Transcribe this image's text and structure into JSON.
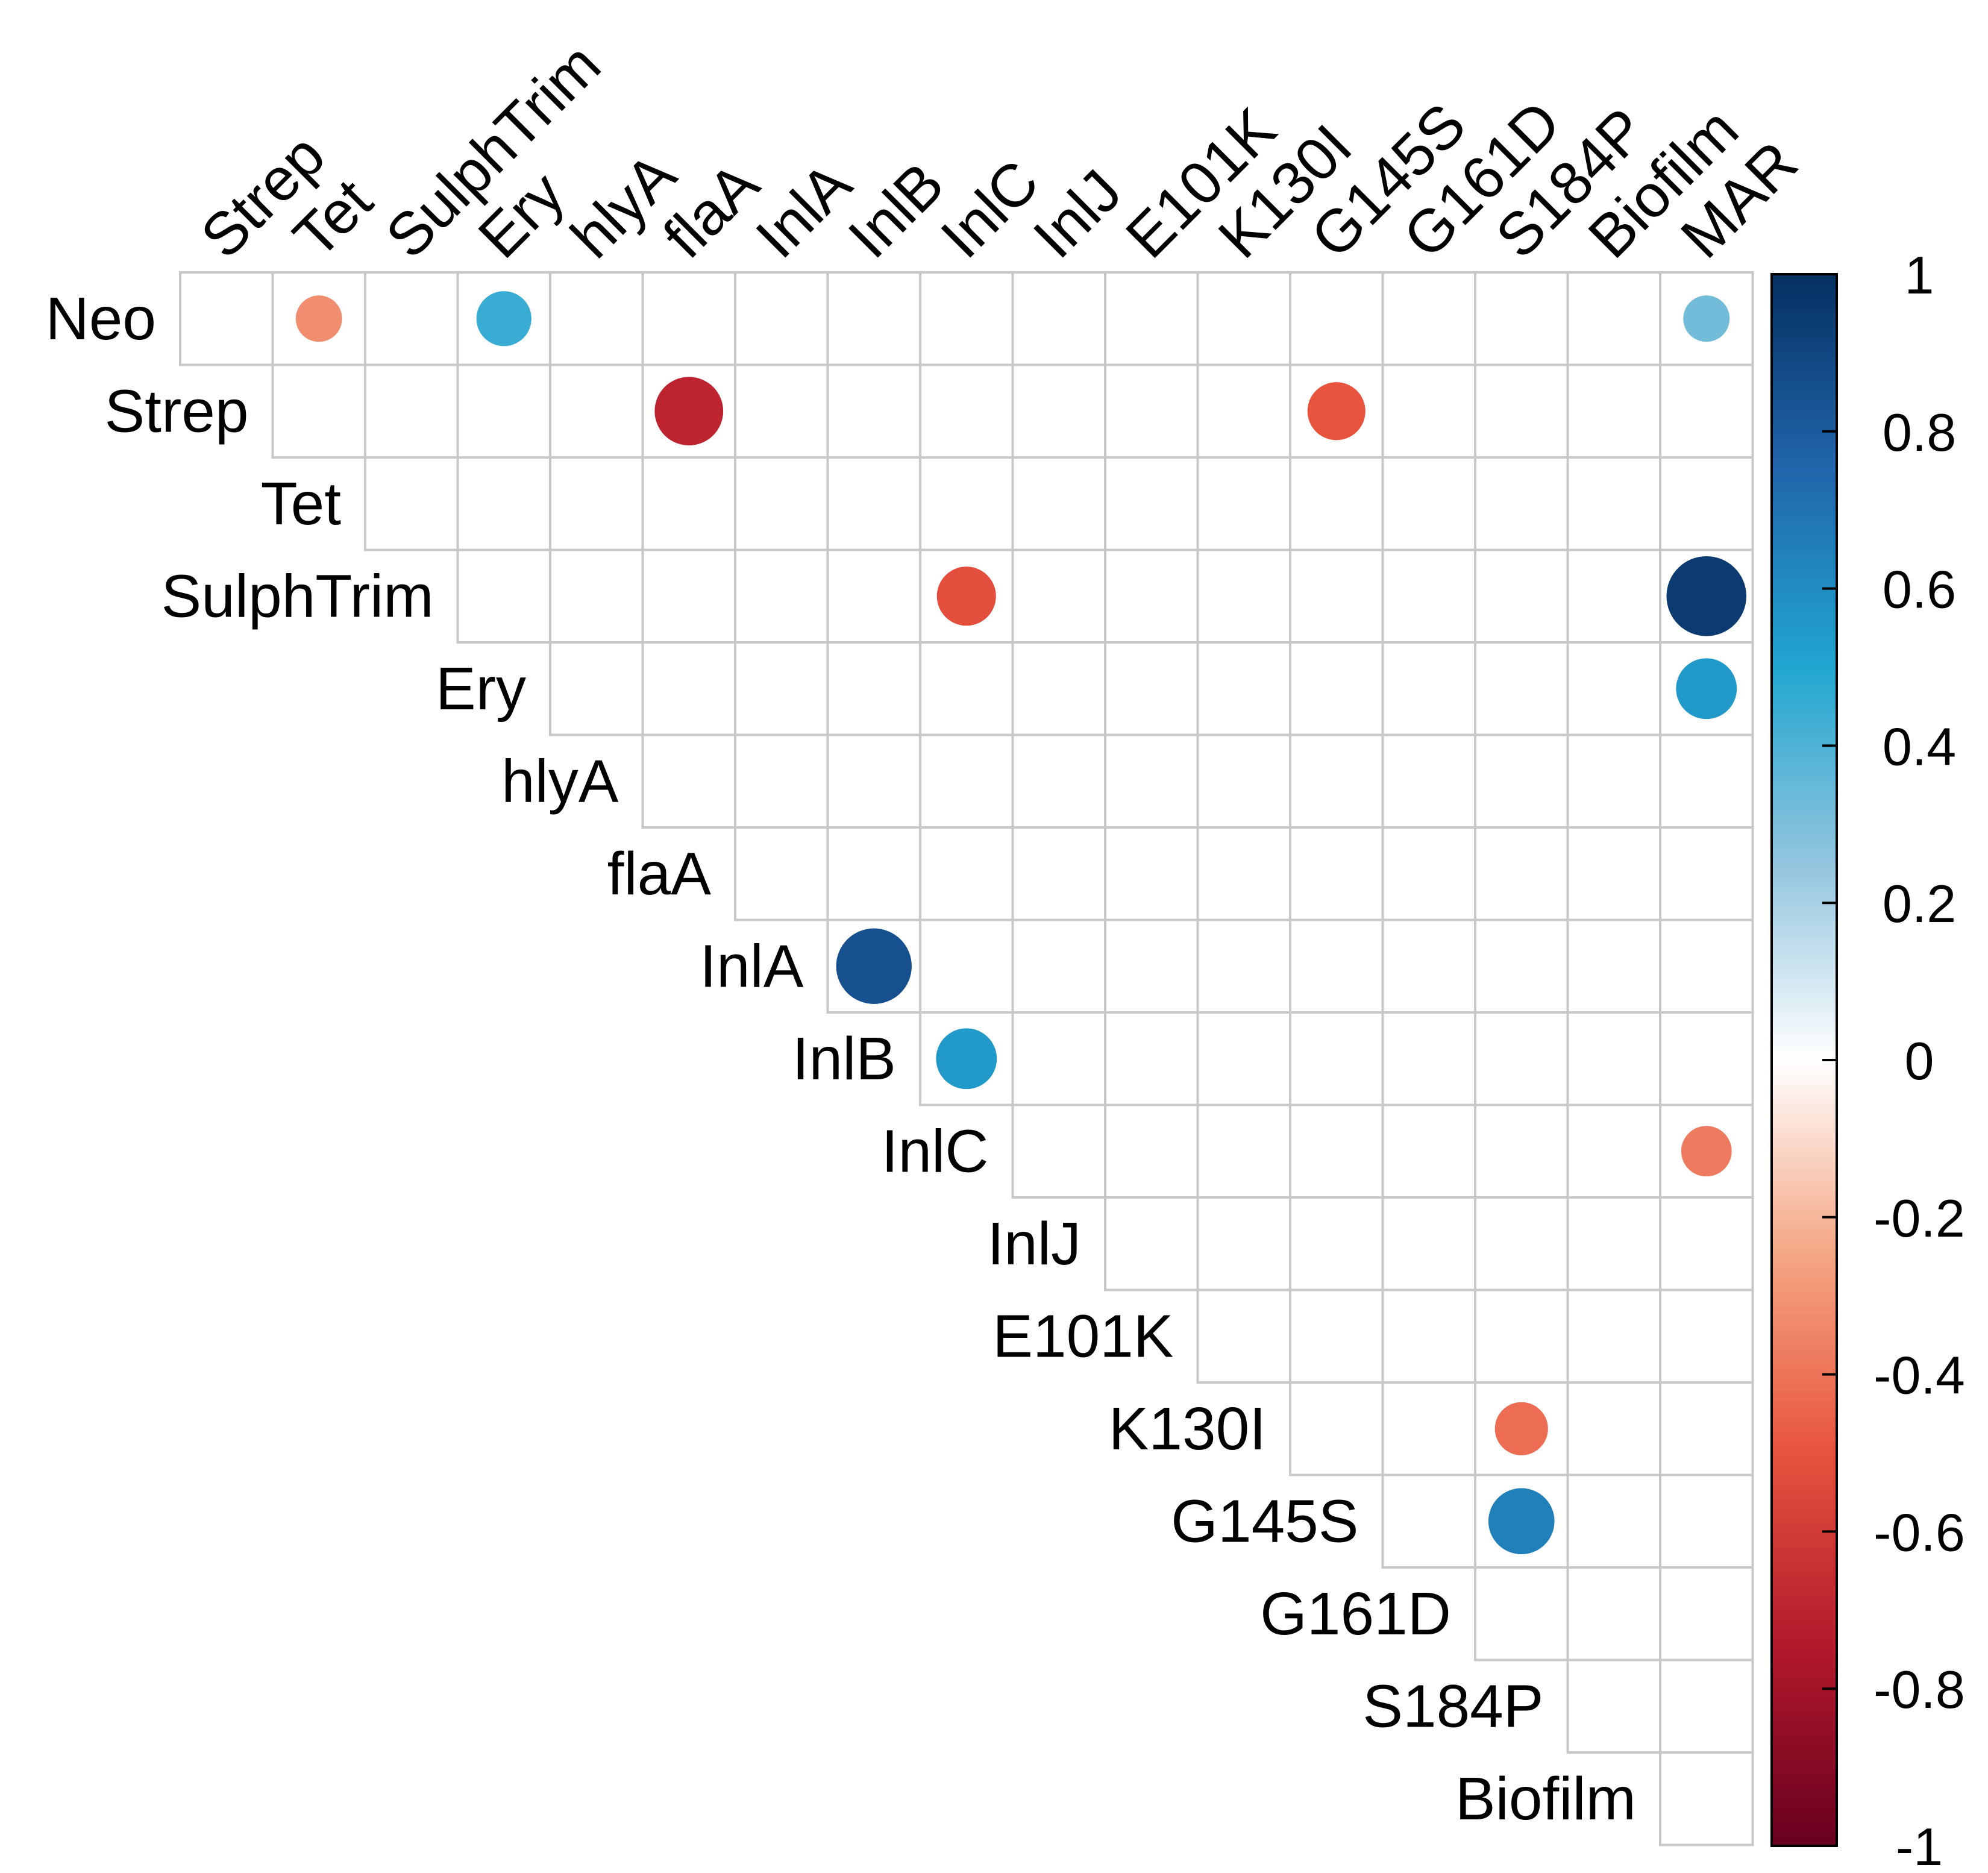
{
  "chart_data": {
    "type": "heatmap",
    "subtype": "correlation-upper-triangle-circles",
    "title": "",
    "row_labels": [
      "Neo",
      "Strep",
      "Tet",
      "SulphTrim",
      "Ery",
      "hlyA",
      "flaA",
      "InlA",
      "InlB",
      "InlC",
      "InlJ",
      "E101K",
      "K130I",
      "G145S",
      "G161D",
      "S184P",
      "Biofilm"
    ],
    "col_labels": [
      "Strep",
      "Tet",
      "SulphTrim",
      "Ery",
      "hlyA",
      "flaA",
      "InlA",
      "InlB",
      "InlC",
      "InlJ",
      "E101K",
      "K130I",
      "G145S",
      "G161D",
      "S184P",
      "Biofilm",
      "MAR"
    ],
    "cells": [
      {
        "row": "Neo",
        "col": "Tet",
        "value": -0.32
      },
      {
        "row": "Neo",
        "col": "Ery",
        "value": 0.45
      },
      {
        "row": "Neo",
        "col": "MAR",
        "value": 0.32
      },
      {
        "row": "Strep",
        "col": "flaA",
        "value": -0.7
      },
      {
        "row": "Strep",
        "col": "G145S",
        "value": -0.5
      },
      {
        "row": "SulphTrim",
        "col": "InlC",
        "value": -0.52
      },
      {
        "row": "SulphTrim",
        "col": "MAR",
        "value": 0.95
      },
      {
        "row": "Ery",
        "col": "MAR",
        "value": 0.55
      },
      {
        "row": "InlA",
        "col": "InlB",
        "value": 0.85
      },
      {
        "row": "InlB",
        "col": "InlC",
        "value": 0.55
      },
      {
        "row": "InlC",
        "col": "MAR",
        "value": -0.38
      },
      {
        "row": "K130I",
        "col": "S184P",
        "value": -0.42
      },
      {
        "row": "G145S",
        "col": "S184P",
        "value": 0.65
      }
    ],
    "color_scale": {
      "range": [
        -1,
        1
      ],
      "ticks": [
        1,
        0.8,
        0.6,
        0.4,
        0.2,
        0,
        -0.2,
        -0.4,
        -0.6,
        -0.8,
        -1
      ],
      "stops": [
        {
          "value": -1,
          "color": "#67001f"
        },
        {
          "value": -0.75,
          "color": "#b2182b"
        },
        {
          "value": -0.5,
          "color": "#e8533e"
        },
        {
          "value": -0.25,
          "color": "#f4a582"
        },
        {
          "value": 0,
          "color": "#ffffff"
        },
        {
          "value": 0.25,
          "color": "#92c5de"
        },
        {
          "value": 0.5,
          "color": "#21a6d0"
        },
        {
          "value": 0.75,
          "color": "#2166ac"
        },
        {
          "value": 1,
          "color": "#053061"
        }
      ]
    },
    "legend_position": "right",
    "grid_color": "#c8c8c8"
  }
}
